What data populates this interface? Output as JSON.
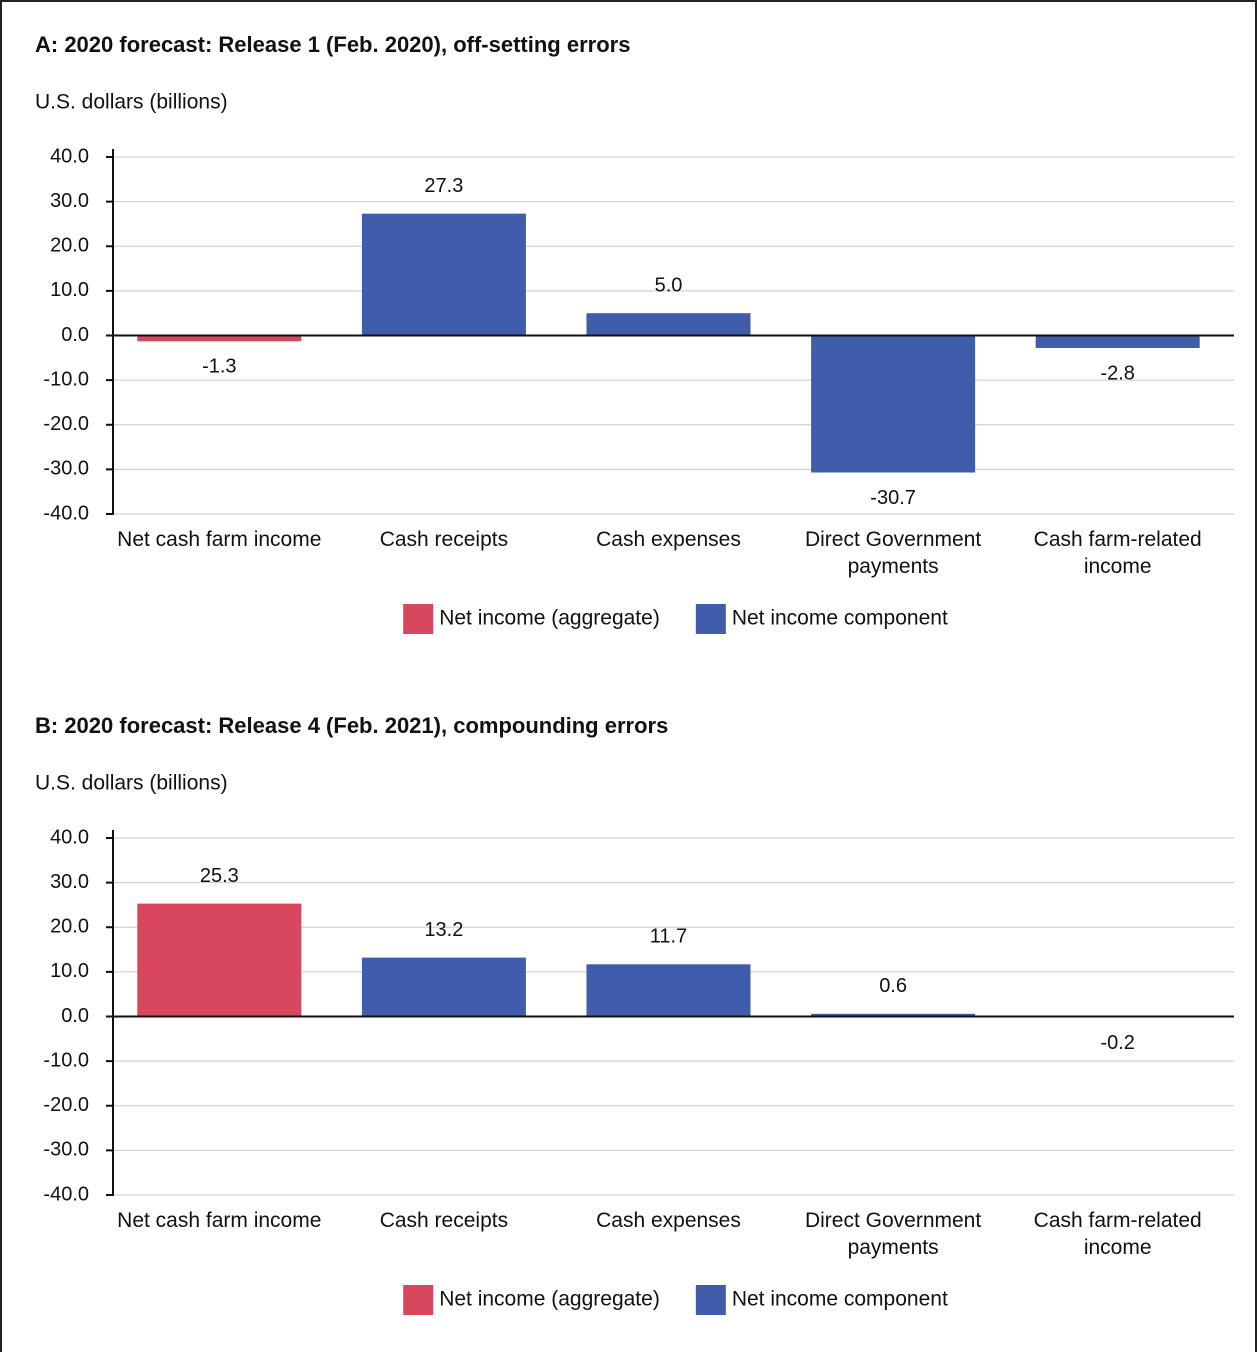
{
  "chart_data": [
    {
      "type": "bar",
      "title": "A: 2020 forecast: Release 1 (Feb. 2020), off-setting errors",
      "y_label": "U.S. dollars (billions)",
      "categories": [
        "Net cash farm income",
        "Cash receipts",
        "Cash expenses",
        "Direct Government payments",
        "Cash farm-related income"
      ],
      "series": [
        {
          "name": "Net income (aggregate)",
          "color": "#d9475f",
          "values": [
            -1.3,
            null,
            null,
            null,
            null
          ]
        },
        {
          "name": "Net income component",
          "color": "#3f5dab",
          "values": [
            null,
            27.3,
            5.0,
            -30.7,
            -2.8
          ],
          "value_labels": [
            null,
            "27.3",
            "5.0",
            "-30.7",
            "-2.8"
          ]
        }
      ],
      "ylim": [
        -40,
        40
      ],
      "yticks": [
        {
          "value": -40,
          "label": "-40.0"
        },
        {
          "value": -30,
          "label": "-30.0"
        },
        {
          "value": -20,
          "label": "-20.0"
        },
        {
          "value": -10,
          "label": "-10.0"
        },
        {
          "value": 0,
          "label": "0.0"
        },
        {
          "value": 10,
          "label": "10.0"
        },
        {
          "value": 20,
          "label": "20.0"
        },
        {
          "value": 30,
          "label": "30.0"
        },
        {
          "value": 40,
          "label": "40.0"
        }
      ],
      "grid": true,
      "legend": "bottom"
    },
    {
      "type": "bar",
      "title": "B: 2020 forecast: Release 4 (Feb. 2021), compounding errors",
      "y_label": "U.S. dollars (billions)",
      "categories": [
        "Net cash farm income",
        "Cash receipts",
        "Cash expenses",
        "Direct Government payments",
        "Cash farm-related income"
      ],
      "series": [
        {
          "name": "Net income (aggregate)",
          "color": "#d9475f",
          "values": [
            25.3,
            null,
            null,
            null,
            null
          ]
        },
        {
          "name": "Net income component",
          "color": "#3f5dab",
          "values": [
            null,
            13.2,
            11.7,
            0.6,
            -0.2
          ]
        }
      ],
      "ylim": [
        -40,
        40
      ],
      "yticks": [
        {
          "value": -40,
          "label": "-40.0"
        },
        {
          "value": -30,
          "label": "-30.0"
        },
        {
          "value": -20,
          "label": "-20.0"
        },
        {
          "value": -10,
          "label": "-10.0"
        },
        {
          "value": 0,
          "label": "0.0"
        },
        {
          "value": 10,
          "label": "10.0"
        },
        {
          "value": 20,
          "label": "20.0"
        },
        {
          "value": 30,
          "label": "30.0"
        },
        {
          "value": 40,
          "label": "40.0"
        }
      ],
      "grid": true,
      "legend": "bottom"
    }
  ]
}
